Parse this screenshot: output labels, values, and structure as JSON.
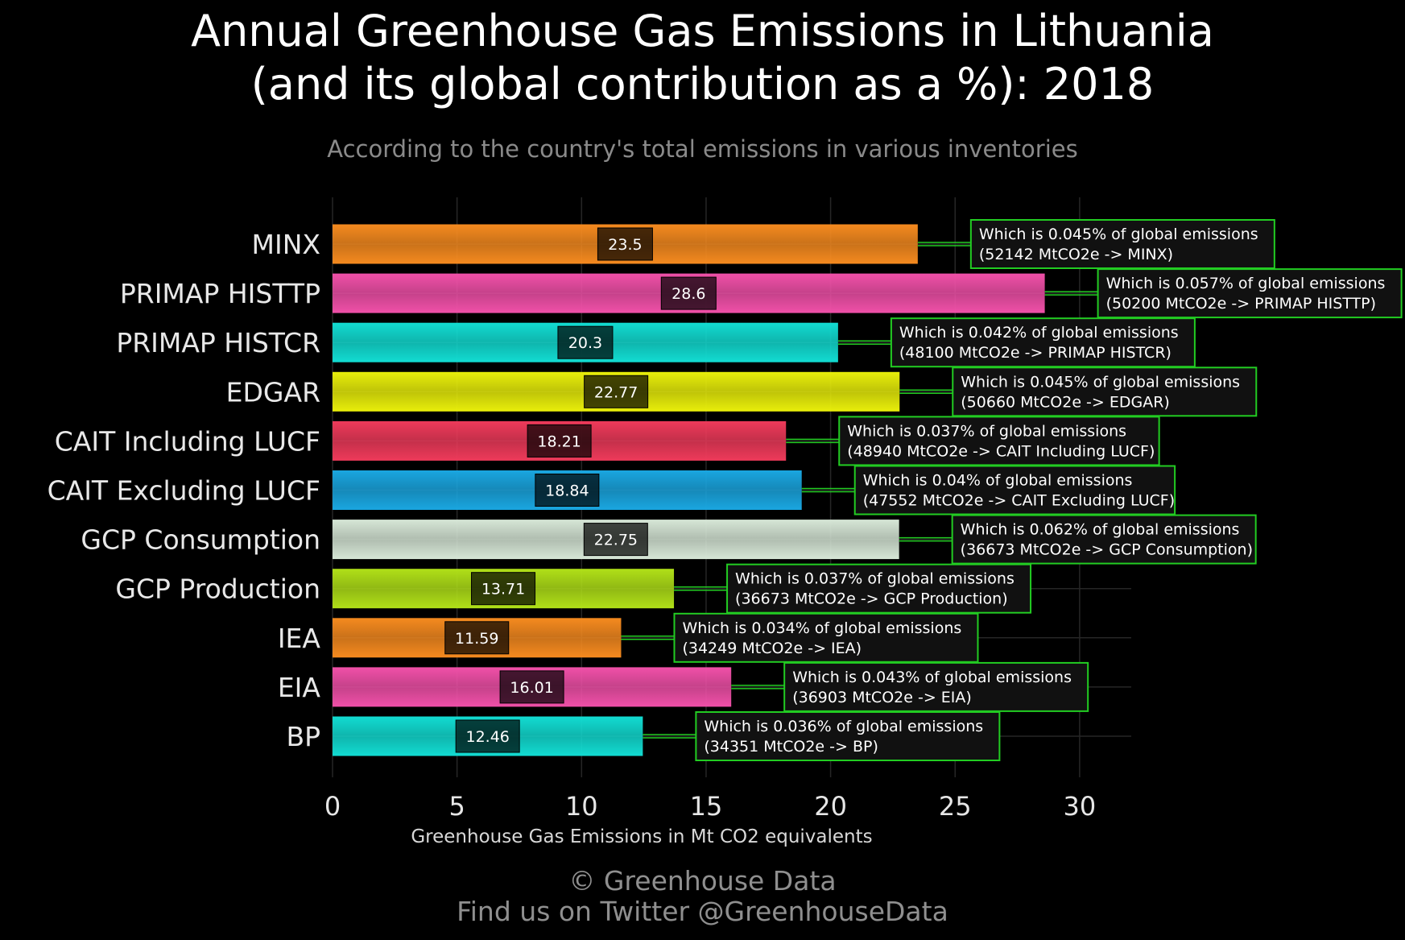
{
  "title_line1": "Annual Greenhouse Gas Emissions in Lithuania",
  "title_line2": "(and its global contribution as a %): 2018",
  "subtitle": "According to the country's total emissions in various inventories",
  "footer": {
    "copyright": "© Greenhouse Data",
    "twitter": "Find us on Twitter @GreenhouseData"
  },
  "chart_data": {
    "type": "bar",
    "orientation": "horizontal",
    "xlabel": "Greenhouse Gas Emissions in Mt CO2 equivalents",
    "xlim": [
      0,
      32
    ],
    "xticks": [
      0,
      5,
      10,
      15,
      20,
      25,
      30
    ],
    "grid": true,
    "categories": [
      "MINX",
      "PRIMAP HISTTP",
      "PRIMAP HISTCR",
      "EDGAR",
      "CAIT Including LUCF",
      "CAIT Excluding LUCF",
      "GCP Consumption",
      "GCP Production",
      "IEA",
      "EIA",
      "BP"
    ],
    "values": [
      23.5,
      28.6,
      20.3,
      22.77,
      18.21,
      18.84,
      22.75,
      13.71,
      11.59,
      16.01,
      12.46
    ],
    "value_labels": [
      "23.5",
      "28.6",
      "20.3",
      "22.77",
      "18.21",
      "18.84",
      "22.75",
      "13.71",
      "11.59",
      "16.01",
      "12.46"
    ],
    "colors": [
      "#f58a1f",
      "#f050a8",
      "#12dcd2",
      "#e8ee0a",
      "#ee3a5a",
      "#1aa6e0",
      "#d6e6d6",
      "#b0e018",
      "#f58a1f",
      "#f050a8",
      "#12dcd2"
    ],
    "annotations": [
      {
        "line1": "Which is 0.045% of global emissions",
        "line2": "(52142 MtCO2e -> MINX)"
      },
      {
        "line1": "Which is 0.057% of global emissions",
        "line2": "(50200 MtCO2e -> PRIMAP HISTTP)"
      },
      {
        "line1": "Which is 0.042% of global emissions",
        "line2": "(48100 MtCO2e -> PRIMAP HISTCR)"
      },
      {
        "line1": "Which is 0.045% of global emissions",
        "line2": "(50660 MtCO2e -> EDGAR)"
      },
      {
        "line1": "Which is 0.037% of global emissions",
        "line2": "(48940 MtCO2e -> CAIT Including LUCF)"
      },
      {
        "line1": "Which is 0.04% of global emissions",
        "line2": "(47552 MtCO2e -> CAIT Excluding LUCF)"
      },
      {
        "line1": "Which is 0.062% of global emissions",
        "line2": "(36673 MtCO2e -> GCP Consumption)"
      },
      {
        "line1": "Which is 0.037% of global emissions",
        "line2": "(36673 MtCO2e -> GCP Production)"
      },
      {
        "line1": "Which is 0.034% of global emissions",
        "line2": "(34249 MtCO2e -> IEA)"
      },
      {
        "line1": "Which is 0.043% of global emissions",
        "line2": "(36903 MtCO2e -> EIA)"
      },
      {
        "line1": "Which is 0.036% of global emissions",
        "line2": "(34351 MtCO2e -> BP)"
      }
    ],
    "annotation_border_color": "#22cc22",
    "annotation_bg_color": "#111111"
  }
}
